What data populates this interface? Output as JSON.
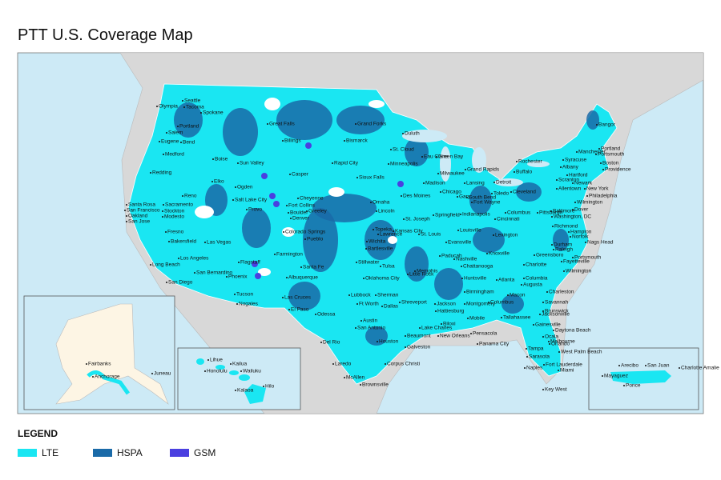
{
  "title": "PTT U.S. Coverage Map",
  "map": {
    "cities": [
      "Seattle",
      "Tacoma",
      "Olympia",
      "Spokane",
      "Portland",
      "Salem",
      "Eugene",
      "Bend",
      "Medford",
      "Redding",
      "Boise",
      "Sun Valley",
      "Billings",
      "Great Falls",
      "Bismarck",
      "Grand Forks",
      "Duluth",
      "Rapid City",
      "Casper",
      "Elko",
      "Reno",
      "Sacramento",
      "Stockton",
      "Modesto",
      "Santa Rosa",
      "San Francisco",
      "Oakland",
      "San Jose",
      "Fresno",
      "Bakersfield",
      "Las Vegas",
      "Long Beach",
      "Los Angeles",
      "San Bernardino",
      "San Diego",
      "Phoenix",
      "Tucson",
      "Nogales",
      "Flagstaff",
      "Salt Lake City",
      "Provo",
      "Ogden",
      "Cheyenne",
      "Fort Collins",
      "Boulder",
      "Greeley",
      "Denver",
      "Colorado Springs",
      "Pueblo",
      "Farmington",
      "Santa Fe",
      "Albuquerque",
      "Las Cruces",
      "El Paso",
      "Lubbock",
      "Odessa",
      "Del Rio",
      "Laredo",
      "McAllen",
      "Brownsville",
      "Corpus Christi",
      "San Antonio",
      "Austin",
      "Houston",
      "Galveston",
      "Beaumont",
      "Dallas",
      "Ft Worth",
      "Sherman",
      "Oklahoma City",
      "Tulsa",
      "Stillwater",
      "Bartlesville",
      "Wichita",
      "Topeka",
      "Lawrence",
      "Kansas City",
      "St. Joseph",
      "Omaha",
      "Lincoln",
      "Sioux Falls",
      "Minneapolis",
      "St. Cloud",
      "Des Moines",
      "Eau Claire",
      "Green Bay",
      "Milwaukee",
      "Madison",
      "Chicago",
      "Gary",
      "Springfield",
      "St. Louis",
      "Evansville",
      "Paducah",
      "Memphis",
      "Little Rock",
      "Nashville",
      "Chattanooga",
      "Huntsville",
      "Birmingham",
      "Atlanta",
      "Montgomery",
      "Jackson",
      "Shreveport",
      "Hattiesburg",
      "Lake Charles",
      "Biloxi",
      "Mobile",
      "New Orleans",
      "Pensacola",
      "Panama City",
      "Tallahassee",
      "Jacksonville",
      "Gainesville",
      "Daytona Beach",
      "Orlando",
      "Ocala",
      "Tampa",
      "Sarasota",
      "Melbourne",
      "West Palm Beach",
      "Fort Lauderdale",
      "Naples",
      "Miami",
      "Key West",
      "Savannah",
      "Brunswick",
      "Macon",
      "Columbus",
      "Augusta",
      "Columbia",
      "Charleston",
      "Charlotte",
      "Greensboro",
      "Raleigh",
      "Durham",
      "Wilmington",
      "Fayetteville",
      "Portsmouth",
      "Knoxville",
      "Lexington",
      "Louisville",
      "Cincinnati",
      "Indianapolis",
      "Fort Wayne",
      "South Bend",
      "Toledo",
      "Detroit",
      "Lansing",
      "Grand Rapids",
      "Cleveland",
      "Columbus",
      "Pittsburgh",
      "Richmond",
      "Hampton",
      "Norfolk",
      "Nags Head",
      "Washington, DC",
      "Baltimore",
      "Wilmington",
      "Dover",
      "Philadelphia",
      "Allentown",
      "Scranton",
      "New York",
      "Newark",
      "Hartford",
      "Albany",
      "Syracuse",
      "Rochester",
      "Buffalo",
      "Manchester",
      "Portsmouth",
      "Portland",
      "Boston",
      "Providence",
      "Bangor"
    ],
    "alaska": [
      "Fairbanks",
      "Anchorage",
      "Juneau"
    ],
    "hawaii": [
      "Lihue",
      "Kailua",
      "Honolulu",
      "Wailuku",
      "Kalaoa",
      "Hilo"
    ],
    "puerto_rico": [
      "Arecibo",
      "San Juan",
      "Charlotte Amalie",
      "Mayaguez",
      "Ponce"
    ]
  },
  "legend": {
    "title": "LEGEND",
    "items": [
      {
        "label": "LTE",
        "color": "#1ae6f2"
      },
      {
        "label": "HSPA",
        "color": "#1a6aa8"
      },
      {
        "label": "GSM",
        "color": "#4a3fe0"
      }
    ]
  }
}
